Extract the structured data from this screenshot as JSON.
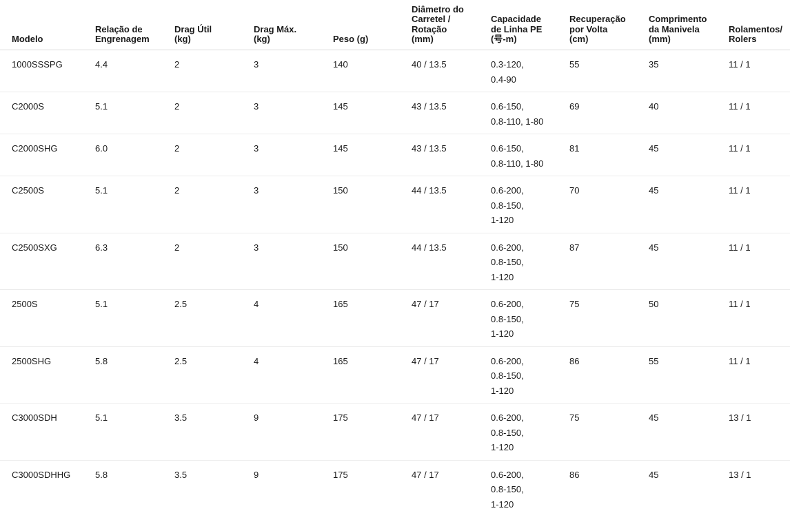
{
  "table": {
    "headers": [
      "Modelo",
      "Relação de\nEngrenagem",
      "Drag Útil\n(kg)",
      "Drag Máx.\n(kg)",
      "Peso (g)",
      "Diâmetro do\nCarretel /\nRotação\n(mm)",
      "Capacidade\nde Linha PE\n(号-m)",
      "Recuperação\npor Volta\n(cm)",
      "Comprimento\nda Manivela\n(mm)",
      "Rolamentos/\nRolers"
    ],
    "rows": [
      [
        "1000SSSPG",
        "4.4",
        "2",
        "3",
        "140",
        "40 / 13.5",
        "0.3-120,\n0.4-90",
        "55",
        "35",
        "11 / 1"
      ],
      [
        "C2000S",
        "5.1",
        "2",
        "3",
        "145",
        "43 / 13.5",
        "0.6-150,\n0.8-110, 1-80",
        "69",
        "40",
        "11 / 1"
      ],
      [
        "C2000SHG",
        "6.0",
        "2",
        "3",
        "145",
        "43 / 13.5",
        "0.6-150,\n0.8-110, 1-80",
        "81",
        "45",
        "11 / 1"
      ],
      [
        "C2500S",
        "5.1",
        "2",
        "3",
        "150",
        "44 / 13.5",
        "0.6-200,\n0.8-150,\n1-120",
        "70",
        "45",
        "11 / 1"
      ],
      [
        "C2500SXG",
        "6.3",
        "2",
        "3",
        "150",
        "44 / 13.5",
        "0.6-200,\n0.8-150,\n1-120",
        "87",
        "45",
        "11 / 1"
      ],
      [
        "2500S",
        "5.1",
        "2.5",
        "4",
        "165",
        "47 / 17",
        "0.6-200,\n0.8-150,\n1-120",
        "75",
        "50",
        "11 / 1"
      ],
      [
        "2500SHG",
        "5.8",
        "2.5",
        "4",
        "165",
        "47 / 17",
        "0.6-200,\n0.8-150,\n1-120",
        "86",
        "55",
        "11 / 1"
      ],
      [
        "C3000SDH",
        "5.1",
        "3.5",
        "9",
        "175",
        "47 / 17",
        "0.6-200,\n0.8-150,\n1-120",
        "75",
        "45",
        "13 / 1"
      ],
      [
        "C3000SDHHG",
        "5.8",
        "3.5",
        "9",
        "175",
        "47 / 17",
        "0.6-200,\n0.8-150,\n1-120",
        "86",
        "45",
        "13 / 1"
      ]
    ]
  }
}
